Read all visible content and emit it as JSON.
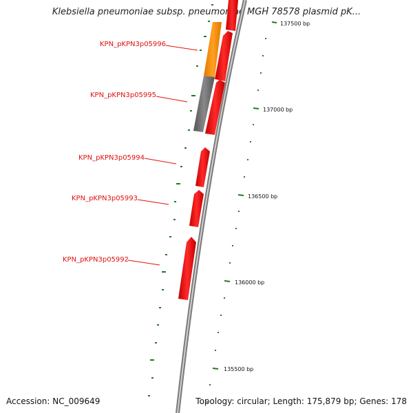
{
  "title": "Klebsiella pneumoniae subsp. pneumoniae MGH 78578 plasmid pK...",
  "footer": {
    "accession": "Accession: NC_009649",
    "summary": "Topology: circular; Length: 175,879 bp; Genes: 178"
  },
  "genes": [
    {
      "label": "KPN_pKPN3p05996",
      "color": "#ff8c00"
    },
    {
      "label": "KPN_pKPN3p05995",
      "color": "#666666"
    },
    {
      "label": "KPN_pKPN3p05994",
      "color": "#ff1010"
    },
    {
      "label": "KPN_pKPN3p05993",
      "color": "#ff1010"
    },
    {
      "label": "KPN_pKPN3p05992",
      "color": "#ff1010"
    }
  ],
  "ticks": [
    {
      "label": "137500 bp"
    },
    {
      "label": "137000 bp"
    },
    {
      "label": "136500 bp"
    },
    {
      "label": "136000 bp"
    },
    {
      "label": "135500 bp"
    }
  ],
  "colors": {
    "backbone": "#8a8a8a",
    "cds_forward": "#ff1010",
    "gc_skew": "#1f7a1f",
    "label": "#e01010"
  }
}
